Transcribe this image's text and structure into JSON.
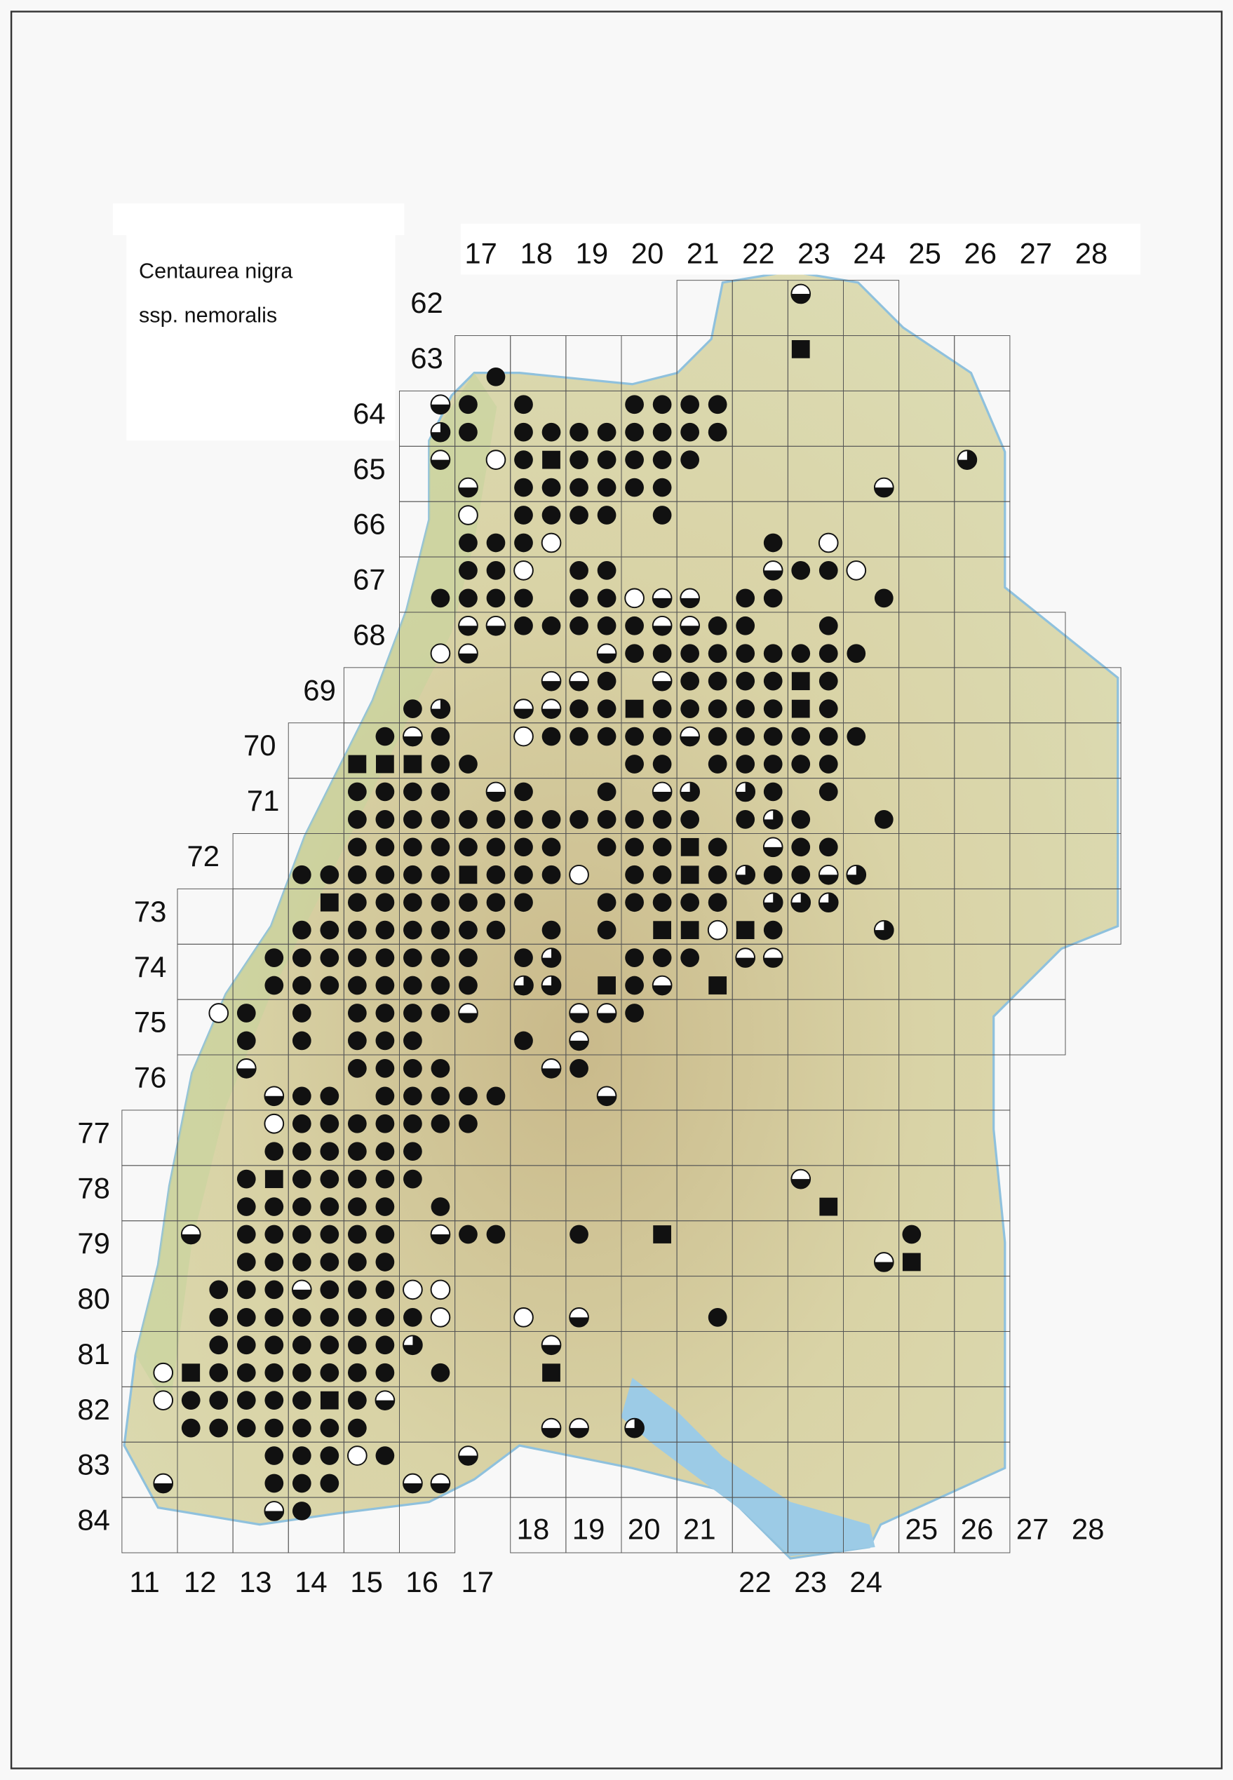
{
  "title": {
    "line1": "Centaurea nigra",
    "line2": "ssp. nemoralis"
  },
  "column_labels_top": [
    "17",
    "18",
    "19",
    "20",
    "21",
    "22",
    "23",
    "24",
    "25",
    "26",
    "27",
    "28"
  ],
  "row_labels": [
    "62",
    "63",
    "64",
    "65",
    "66",
    "67",
    "68",
    "69",
    "70",
    "71",
    "72",
    "73",
    "74",
    "75",
    "76",
    "77",
    "78",
    "79",
    "80",
    "81",
    "82",
    "83",
    "84"
  ],
  "column_labels_bottom": [
    "11",
    "12",
    "13",
    "14",
    "15",
    "16",
    "17",
    "18",
    "19",
    "20",
    "21",
    "22",
    "23",
    "24",
    "25",
    "26",
    "27",
    "28"
  ]
}
